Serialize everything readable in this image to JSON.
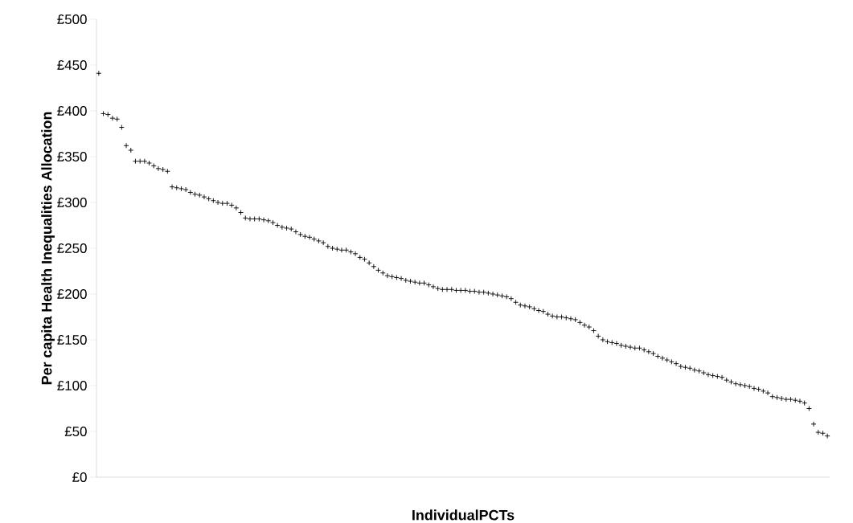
{
  "chart_data": {
    "type": "scatter",
    "xlabel": "IndividualPCTs",
    "ylabel": "Per capita Health Inequalities Allocation",
    "categories": [
      null,
      null,
      null,
      null,
      null,
      null,
      null,
      null,
      null,
      null,
      null,
      null,
      null,
      null,
      null,
      null,
      null,
      null,
      null,
      null,
      null,
      null,
      null,
      null,
      null,
      null,
      null,
      null,
      null,
      null,
      null,
      null,
      null,
      null,
      null,
      null,
      null,
      null,
      null,
      null,
      null,
      null,
      null,
      null,
      null,
      null,
      null,
      null,
      null,
      null,
      null,
      null,
      null,
      null,
      null,
      null,
      null,
      null,
      null,
      null,
      null,
      null,
      null,
      null,
      null,
      null,
      null,
      null,
      null,
      null,
      null,
      null,
      null,
      null,
      null,
      null,
      null,
      null,
      null,
      null,
      null,
      null,
      null,
      null,
      null,
      null,
      null,
      null,
      null,
      null,
      null,
      null,
      null,
      null,
      null,
      null,
      null,
      null,
      null,
      null,
      null,
      null,
      null,
      null,
      null,
      null,
      null,
      null,
      null,
      null,
      null,
      null,
      null,
      null,
      null,
      null,
      null,
      null,
      null,
      null,
      null,
      null,
      null,
      null,
      null,
      null,
      null,
      null,
      null,
      null,
      null,
      null,
      null,
      null,
      null,
      null,
      null,
      null,
      null,
      null,
      null,
      null,
      null,
      null,
      null,
      null,
      null,
      null,
      null,
      null,
      null,
      null,
      null,
      null,
      null,
      null,
      null,
      null,
      null,
      null
    ],
    "values": [
      441,
      397,
      396,
      392,
      391,
      382,
      362,
      357,
      345,
      345,
      345,
      343,
      340,
      337,
      336,
      334,
      317,
      316,
      315,
      314,
      311,
      309,
      308,
      306,
      304,
      302,
      300,
      299,
      299,
      297,
      294,
      289,
      283,
      282,
      282,
      282,
      281,
      280,
      278,
      275,
      273,
      272,
      271,
      268,
      265,
      263,
      262,
      260,
      258,
      256,
      252,
      250,
      249,
      248,
      248,
      246,
      244,
      240,
      238,
      234,
      230,
      226,
      223,
      220,
      219,
      218,
      217,
      215,
      214,
      213,
      212,
      212,
      210,
      208,
      206,
      205,
      205,
      205,
      204,
      204,
      204,
      203,
      203,
      202,
      202,
      201,
      200,
      199,
      198,
      197,
      195,
      191,
      188,
      187,
      186,
      184,
      182,
      181,
      178,
      176,
      175,
      175,
      174,
      173,
      172,
      169,
      166,
      164,
      160,
      154,
      150,
      148,
      147,
      146,
      144,
      143,
      142,
      141,
      141,
      139,
      137,
      135,
      132,
      130,
      128,
      126,
      124,
      121,
      120,
      119,
      117,
      116,
      114,
      112,
      111,
      110,
      109,
      106,
      104,
      102,
      101,
      100,
      99,
      97,
      96,
      94,
      92,
      88,
      87,
      86,
      85,
      85,
      84,
      83,
      81,
      75,
      58,
      49,
      48,
      45
    ],
    "color": "#000000",
    "marker": "cross",
    "grid": false,
    "ylim": [
      0,
      500
    ],
    "yticks": [
      {
        "value": 0,
        "label": "£0"
      },
      {
        "value": 50,
        "label": "£50"
      },
      {
        "value": 100,
        "label": "£100"
      },
      {
        "value": 150,
        "label": "£150"
      },
      {
        "value": 200,
        "label": "£200"
      },
      {
        "value": 250,
        "label": "£250"
      },
      {
        "value": 300,
        "label": "£300"
      },
      {
        "value": 350,
        "label": "£350"
      },
      {
        "value": 400,
        "label": "£400"
      },
      {
        "value": 450,
        "label": "£450"
      },
      {
        "value": 500,
        "label": "£500"
      }
    ]
  }
}
